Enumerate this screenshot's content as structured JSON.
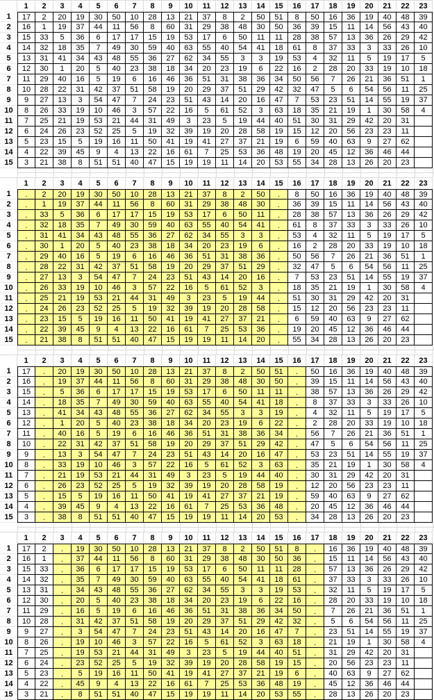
{
  "colors": {
    "highlight": "#FFFF99",
    "cell_border": "#000000",
    "gridline": "#DADADA",
    "text": "#000000"
  },
  "dot_char": ".",
  "column_headers": [
    "1",
    "2",
    "3",
    "4",
    "5",
    "6",
    "7",
    "8",
    "9",
    "10",
    "11",
    "12",
    "13",
    "14",
    "15",
    "16",
    "17",
    "18",
    "19",
    "20",
    "21",
    "22",
    "23"
  ],
  "row_headers": [
    "1",
    "2",
    "3",
    "4",
    "5",
    "6",
    "7",
    "8",
    "9",
    "10",
    "11",
    "12",
    "13",
    "14",
    "15"
  ],
  "base_rows": [
    [
      17,
      2,
      20,
      19,
      30,
      50,
      10,
      28,
      13,
      21,
      37,
      8,
      2,
      50,
      51,
      8,
      50,
      16,
      36,
      19,
      40,
      48,
      39
    ],
    [
      16,
      1,
      19,
      37,
      44,
      11,
      56,
      8,
      60,
      31,
      29,
      38,
      48,
      30,
      50,
      36,
      39,
      15,
      11,
      14,
      56,
      43,
      40
    ],
    [
      15,
      33,
      5,
      36,
      6,
      17,
      17,
      15,
      19,
      53,
      17,
      6,
      50,
      11,
      11,
      28,
      38,
      57,
      13,
      36,
      26,
      29,
      42
    ],
    [
      14,
      32,
      18,
      35,
      7,
      49,
      30,
      59,
      40,
      63,
      55,
      40,
      54,
      41,
      18,
      61,
      8,
      37,
      33,
      3,
      33,
      26,
      10
    ],
    [
      13,
      31,
      41,
      34,
      43,
      48,
      55,
      36,
      27,
      62,
      34,
      55,
      3,
      3,
      19,
      53,
      4,
      32,
      11,
      5,
      19,
      17,
      5
    ],
    [
      12,
      30,
      1,
      20,
      5,
      40,
      23,
      38,
      18,
      34,
      20,
      23,
      19,
      6,
      22,
      16,
      2,
      28,
      20,
      33,
      19,
      10,
      18
    ],
    [
      11,
      29,
      40,
      16,
      5,
      19,
      6,
      16,
      46,
      36,
      51,
      31,
      38,
      36,
      34,
      50,
      56,
      7,
      26,
      21,
      36,
      51,
      1
    ],
    [
      10,
      28,
      22,
      31,
      42,
      37,
      51,
      58,
      19,
      20,
      29,
      37,
      51,
      29,
      42,
      32,
      47,
      5,
      6,
      54,
      56,
      11,
      25
    ],
    [
      9,
      27,
      13,
      3,
      54,
      47,
      7,
      24,
      23,
      51,
      43,
      14,
      20,
      16,
      47,
      7,
      53,
      23,
      51,
      14,
      55,
      19,
      37
    ],
    [
      8,
      26,
      33,
      19,
      10,
      46,
      3,
      57,
      22,
      16,
      5,
      61,
      52,
      3,
      63,
      18,
      35,
      21,
      19,
      1,
      30,
      58,
      4
    ],
    [
      7,
      25,
      21,
      19,
      53,
      21,
      44,
      31,
      49,
      3,
      23,
      5,
      19,
      44,
      40,
      51,
      30,
      31,
      29,
      42,
      20,
      31,
      ""
    ],
    [
      6,
      24,
      26,
      23,
      52,
      25,
      5,
      19,
      32,
      39,
      19,
      20,
      28,
      58,
      19,
      15,
      12,
      20,
      56,
      23,
      23,
      11,
      ""
    ],
    [
      5,
      23,
      15,
      5,
      19,
      16,
      11,
      50,
      41,
      19,
      41,
      27,
      37,
      21,
      19,
      6,
      59,
      40,
      63,
      9,
      27,
      62,
      ""
    ],
    [
      4,
      22,
      39,
      45,
      9,
      4,
      13,
      22,
      16,
      61,
      7,
      25,
      53,
      36,
      48,
      19,
      20,
      45,
      12,
      36,
      46,
      44,
      ""
    ],
    [
      3,
      21,
      38,
      8,
      51,
      51,
      40,
      47,
      15,
      19,
      19,
      11,
      14,
      20,
      53,
      55,
      34,
      28,
      13,
      26,
      20,
      23,
      ""
    ]
  ],
  "tables": [
    {
      "name": "table-1",
      "dot_columns": [],
      "highlight_columns": null
    },
    {
      "name": "table-2",
      "dot_columns": [
        1,
        15
      ],
      "highlight_columns": [
        1,
        15
      ]
    },
    {
      "name": "table-3",
      "dot_columns": [
        2,
        16
      ],
      "highlight_columns": [
        2,
        16
      ]
    },
    {
      "name": "table-4",
      "dot_columns": [
        3,
        17
      ],
      "highlight_columns": [
        3,
        17
      ]
    }
  ]
}
